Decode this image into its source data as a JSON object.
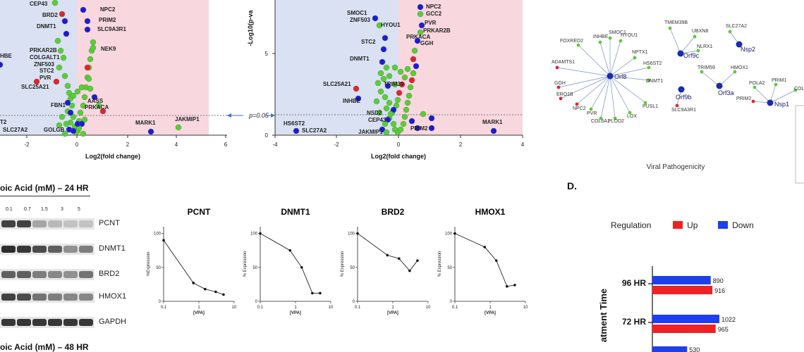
{
  "panels": {
    "volcano_left": {
      "xlabel": "Log2(fold change)",
      "xticks": [
        "-2",
        "0",
        "2",
        "4",
        "6"
      ],
      "labels_left": [
        "CEP43",
        "BRD2",
        "DNMT1",
        "PRKAR2B",
        "COLGALT1",
        "ZNF503",
        "STC2",
        "PVR",
        "SLC25A21",
        "FBN1",
        "SLC27A2",
        "GOLGB"
      ],
      "labels_right": [
        "NPC2",
        "PRIM2",
        "SLC9A3R1",
        "NEK9",
        "AASS",
        "PRKACA",
        "MARK1",
        "JAKMIP1"
      ],
      "cut_labels": [
        "HBE",
        "T2"
      ]
    },
    "threshold_label": "p=0.05",
    "volcano_right": {
      "ylabel": "-Log10(p-va",
      "yticks": [
        "0",
        "5"
      ],
      "xlabel": "Log2(fold change)",
      "xticks": [
        "-4",
        "-2",
        "0",
        "2",
        "4"
      ],
      "labels": [
        "SMOC1",
        "ZNF503",
        "HYOU1",
        "STC2",
        "NPC2",
        "GCC2",
        "PVR",
        "PRKAR2B",
        "PRKACA",
        "GGH",
        "DNMT1",
        "TRIM39",
        "SLC25A21",
        "INHBE",
        "NSD2",
        "CEP43",
        "JAKMIP1",
        "HS6ST2",
        "SLC27A2",
        "PRIM2",
        "MARK1"
      ]
    },
    "network": {
      "title": "Viral Pathogenicity",
      "hubs": [
        "Orf8",
        "Orf9c",
        "Nsp2",
        "Orf9b",
        "Orf3a",
        "Nsp1"
      ],
      "orf8_genes": [
        "FOXRED2",
        "INHBE",
        "SMOC1",
        "HYOU1",
        "NPTX1",
        "HS6ST2",
        "DNMT1",
        "ADAMTS1",
        "GGH",
        "ERO1B",
        "NPC2",
        "PVR",
        "COL6A1",
        "PLOD2",
        "LOX",
        "PUSL1"
      ],
      "orf9c_genes": [
        "TMEM39B",
        "UBXN8",
        "NLRX1"
      ],
      "nsp2_genes": [
        "SLC27A2"
      ],
      "orf9b_genes": [
        "SLC9A3R1"
      ],
      "orf3a_genes": [
        "TRIM59",
        "HMOX1"
      ],
      "nsp1_genes": [
        "POLA2",
        "PRIM1",
        "PRIM2",
        "COL"
      ]
    },
    "blot": {
      "title": "oic Acid (mM) – 24 HR",
      "concentrations": [
        "0.1",
        "0.7",
        "1.5",
        "3",
        "5"
      ],
      "bands": [
        "PCNT",
        "DNMT1",
        "BRD2",
        "HMOX1",
        "GAPDH"
      ],
      "next_title": "oic Acid (mM) – 48 HR"
    },
    "line_plots": {
      "xlabel": "[VPA]",
      "xticks": [
        "0.1",
        "1",
        "10"
      ],
      "yticks": [
        "0",
        "50",
        "100"
      ],
      "ylabels": [
        "%Expression",
        "% Expression",
        "% Expression",
        "% Expression"
      ]
    },
    "section_d": {
      "label": "D.",
      "legend_title": "Regulation",
      "legend_up": "Up",
      "legend_down": "Down",
      "axis_title": "atment Time"
    }
  },
  "colors": {
    "blue": "#1c1cd6",
    "green": "#58cf34",
    "red": "#e0262b",
    "bg_blue": "#d9e1f2",
    "bg_pink": "#f8d7df",
    "bar_blue": "#1e3ff0",
    "bar_red": "#ee2222"
  },
  "chart_data": [
    {
      "type": "line",
      "title": "PCNT",
      "xlabel": "[VPA]",
      "ylabel": "%Expression",
      "x": [
        0.1,
        0.7,
        1.5,
        3,
        5
      ],
      "y": [
        90,
        27,
        18,
        14,
        10
      ],
      "xscale": "log",
      "xlim": [
        0.1,
        10
      ],
      "ylim": [
        0,
        110
      ]
    },
    {
      "type": "line",
      "title": "DNMT1",
      "xlabel": "[VPA]",
      "ylabel": "% Expression",
      "x": [
        0.1,
        0.7,
        1.5,
        3,
        5
      ],
      "y": [
        100,
        75,
        50,
        12,
        12
      ],
      "xscale": "log",
      "xlim": [
        0.1,
        10
      ],
      "ylim": [
        0,
        110
      ]
    },
    {
      "type": "line",
      "title": "BRD2",
      "xlabel": "[VPA]",
      "ylabel": "% Expression",
      "x": [
        0.1,
        0.7,
        1.5,
        3,
        5
      ],
      "y": [
        100,
        68,
        63,
        45,
        60
      ],
      "xscale": "log",
      "xlim": [
        0.1,
        10
      ],
      "ylim": [
        0,
        110
      ]
    },
    {
      "type": "line",
      "title": "HMOX1",
      "xlabel": "[VPA]",
      "ylabel": "% Expression",
      "x": [
        0.1,
        0.7,
        1.5,
        3,
        5
      ],
      "y": [
        100,
        80,
        60,
        22,
        24
      ],
      "xscale": "log",
      "xlim": [
        0.1,
        10
      ],
      "ylim": [
        0,
        110
      ]
    },
    {
      "type": "bar",
      "title": "",
      "ylabel": "Treatment Time",
      "categories": [
        "96 HR",
        "72 HR"
      ],
      "series": [
        {
          "name": "Down",
          "values": [
            890,
            1022
          ]
        },
        {
          "name": "Up",
          "values": [
            916,
            965
          ]
        }
      ],
      "partial_value": 530,
      "orientation": "horizontal"
    }
  ]
}
